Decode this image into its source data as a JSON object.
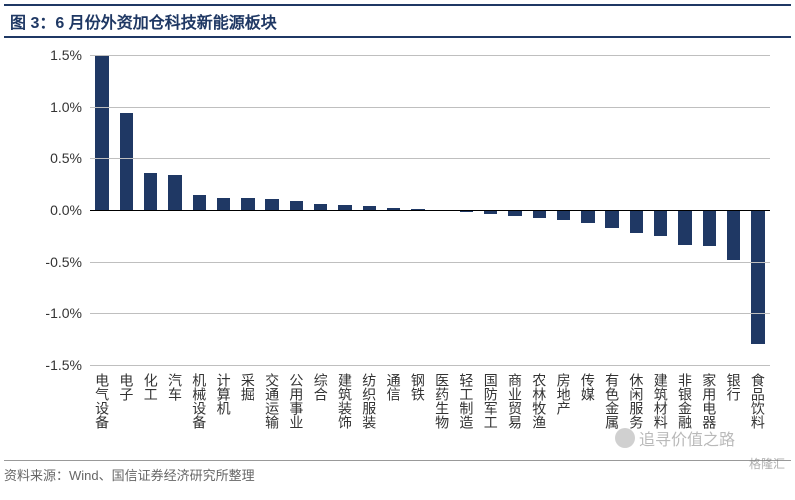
{
  "title": "图 3：6 月份外资加仓科技新能源板块",
  "source": "资料来源：Wind、国信证券经济研究所整理",
  "watermark": "追寻价值之路",
  "logo": "格隆汇",
  "chart": {
    "type": "bar",
    "ylim": [
      -1.5,
      1.5
    ],
    "ytick_step": 0.5,
    "y_format": "percent",
    "background_color": "#ffffff",
    "grid_color": "#bfbfbf",
    "axis_color": "#000000",
    "bar_color": "#1f3864",
    "bar_width": 0.55,
    "label_fontsize": 14,
    "categories": [
      "电气设备",
      "电子",
      "化工",
      "汽车",
      "机械设备",
      "计算机",
      "采掘",
      "交通运输",
      "公用事业",
      "综合",
      "建筑装饰",
      "纺织服装",
      "通信",
      "钢铁",
      "医药生物",
      "轻工制造",
      "国防军工",
      "商业贸易",
      "农林牧渔",
      "房地产",
      "传媒",
      "有色金属",
      "休闲服务",
      "建筑材料",
      "非银金融",
      "家用电器",
      "银行",
      "食品饮料"
    ],
    "values": [
      1.49,
      0.94,
      0.36,
      0.34,
      0.15,
      0.12,
      0.12,
      0.11,
      0.09,
      0.06,
      0.05,
      0.04,
      0.02,
      0.01,
      -0.01,
      -0.02,
      -0.04,
      -0.06,
      -0.08,
      -0.1,
      -0.13,
      -0.17,
      -0.22,
      -0.25,
      -0.34,
      -0.35,
      -0.48,
      -1.3
    ]
  }
}
